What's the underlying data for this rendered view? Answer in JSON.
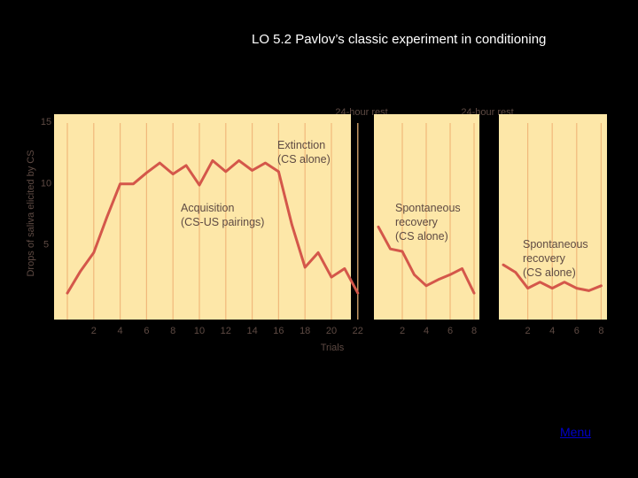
{
  "slide": {
    "title": "LO 5.2 Pavlov’s classic experiment in conditioning",
    "menu_label": "Menu"
  },
  "colors": {
    "panel": "#fde7a8",
    "grid": "#f1b97b",
    "line": "#d4574a",
    "text": "#5e4a43",
    "background": "#000000"
  },
  "chart_data": {
    "type": "line",
    "title": "",
    "ylabel": "Drops of saliva elicited by CS",
    "xlabel": "Trials",
    "ylim": [
      0,
      15
    ],
    "yticks": [
      5,
      10,
      15
    ],
    "rest_labels": [
      "24-hour rest",
      "24-hour rest"
    ],
    "panels": [
      {
        "xticks": [
          "2",
          "4",
          "6",
          "8",
          "10",
          "12",
          "14",
          "16",
          "18",
          "20",
          "22"
        ],
        "series": [
          {
            "x": [
              0,
              1,
              2,
              3,
              4,
              5,
              6,
              7,
              8,
              9,
              10,
              11,
              12,
              13,
              14,
              15,
              16,
              17,
              18,
              19,
              20,
              21,
              22
            ],
            "y": [
              1.0,
              2.8,
              4.3,
              7.2,
              9.9,
              9.9,
              10.8,
              11.6,
              10.7,
              11.4,
              9.8,
              11.8,
              10.9,
              11.8,
              11.0,
              11.6,
              10.9,
              6.6,
              3.1,
              4.3,
              2.3,
              3.0,
              1.0
            ]
          }
        ],
        "annotations": [
          {
            "lines": [
              "Extinction",
              "(CS alone)"
            ]
          },
          {
            "lines": [
              "Acquisition",
              "(CS-US pairings)"
            ]
          }
        ]
      },
      {
        "xticks": [
          "2",
          "4",
          "6",
          "8"
        ],
        "series": [
          {
            "x": [
              0,
              1,
              2,
              3,
              4,
              5,
              6,
              7,
              8
            ],
            "y": [
              6.4,
              4.6,
              4.4,
              2.5,
              1.6,
              2.1,
              2.5,
              3.0,
              1.0
            ]
          }
        ],
        "annotations": [
          {
            "lines": [
              "Spontaneous",
              "recovery",
              "(CS alone)"
            ]
          }
        ]
      },
      {
        "xticks": [
          "2",
          "4",
          "6",
          "8"
        ],
        "series": [
          {
            "x": [
              0,
              1,
              2,
              3,
              4,
              5,
              6,
              7,
              8
            ],
            "y": [
              3.3,
              2.7,
              1.4,
              1.9,
              1.4,
              1.9,
              1.4,
              1.2,
              1.6
            ]
          }
        ],
        "annotations": [
          {
            "lines": [
              "Spontaneous",
              "recovery",
              "(CS alone)"
            ]
          }
        ]
      }
    ]
  }
}
